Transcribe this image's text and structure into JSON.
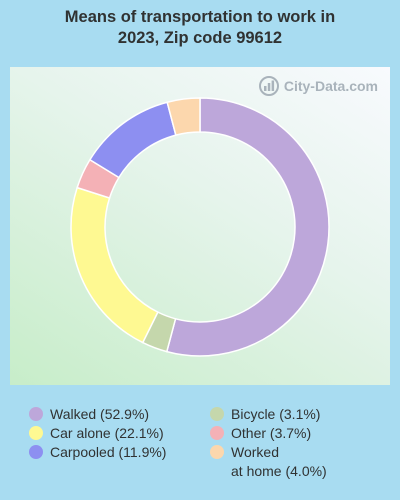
{
  "title": "Means of transportation to work in\n2023, Zip code 99612",
  "watermark": "City-Data.com",
  "chart_data": {
    "type": "pie",
    "donut": true,
    "title": "Means of transportation to work in 2023, Zip code 99612",
    "slices": [
      {
        "label": "Walked",
        "value": 52.9,
        "color": "#bda7da"
      },
      {
        "label": "Bicycle",
        "value": 3.1,
        "color": "#c5d7ac"
      },
      {
        "label": "Car alone",
        "value": 22.1,
        "color": "#fef992"
      },
      {
        "label": "Other",
        "value": 3.7,
        "color": "#f4b1b6"
      },
      {
        "label": "Carpooled",
        "value": 11.9,
        "color": "#8d8ff1"
      },
      {
        "label": "Worked at home",
        "value": 4.0,
        "color": "#fcd7ad"
      }
    ]
  },
  "legend": [
    {
      "text": "Walked (52.9%)",
      "color": "#bda7da"
    },
    {
      "text": "Car alone (22.1%)",
      "color": "#fef992"
    },
    {
      "text": "Carpooled (11.9%)",
      "color": "#8d8ff1"
    },
    {
      "text": "Bicycle (3.1%)",
      "color": "#c5d7ac"
    },
    {
      "text": "Other (3.7%)",
      "color": "#f4b1b6"
    },
    {
      "text": "Worked\nat home (4.0%)",
      "color": "#fcd7ad"
    }
  ]
}
